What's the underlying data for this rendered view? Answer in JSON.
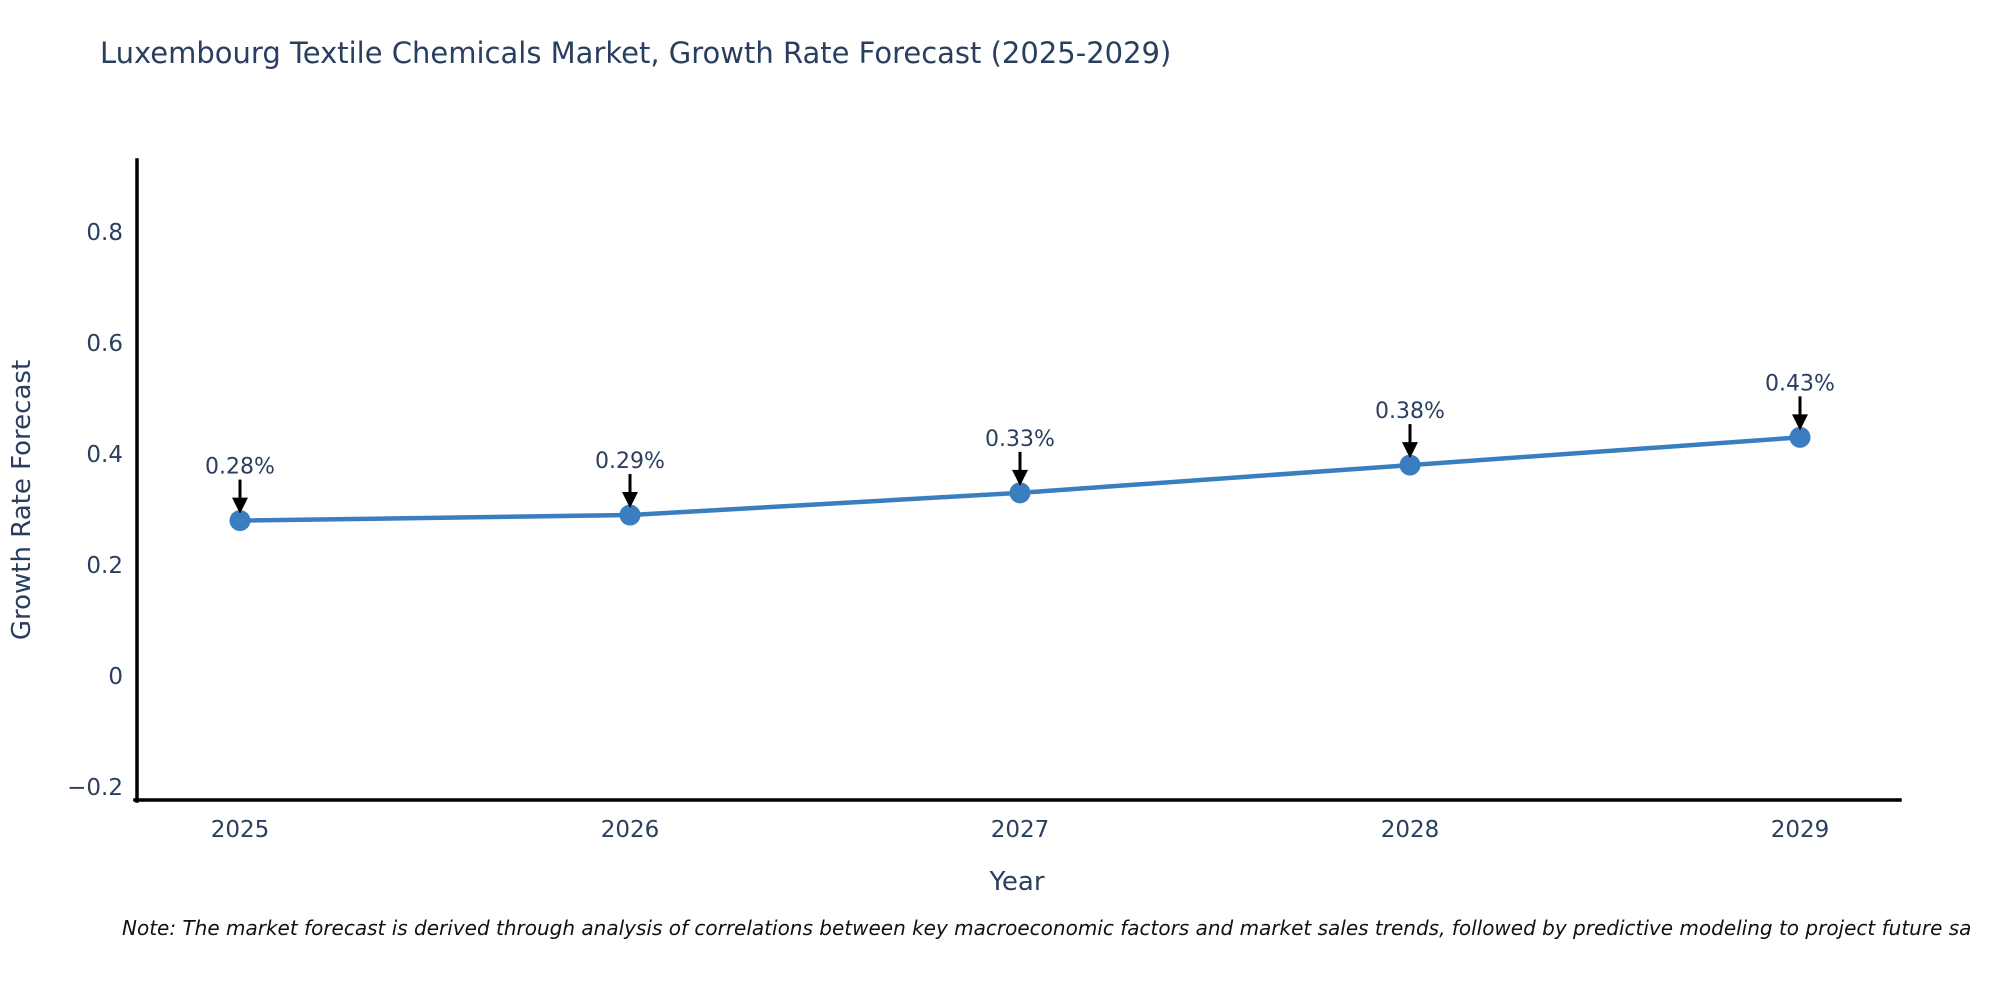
{
  "title": "Luxembourg Textile Chemicals Market, Growth Rate Forecast (2025-2029)",
  "note": "Note: The market forecast is derived through analysis of correlations between key macroeconomic factors and market sales trends, followed by predictive modeling to project future sa",
  "colors": {
    "line": "#3a7ebf",
    "marker": "#3a7ebf",
    "text": "#2a3f5f",
    "axis": "#000000",
    "arrow": "#000000",
    "background": "#ffffff"
  },
  "chart_data": {
    "type": "line",
    "title": "Luxembourg Textile Chemicals Market, Growth Rate Forecast (2025-2029)",
    "xlabel": "Year",
    "ylabel": "Growth Rate Forecast",
    "x": [
      2025,
      2026,
      2027,
      2028,
      2029
    ],
    "values": [
      0.28,
      0.29,
      0.33,
      0.38,
      0.43
    ],
    "point_labels": [
      "0.28%",
      "0.29%",
      "0.33%",
      "0.38%",
      "0.43%"
    ],
    "xticks": [
      "2025",
      "2026",
      "2027",
      "2028",
      "2029"
    ],
    "yticks": {
      "values": [
        -0.2,
        0,
        0.2,
        0.4,
        0.6,
        0.8
      ],
      "labels": [
        "−0.2",
        "0",
        "0.2",
        "0.4",
        "0.6",
        "0.8"
      ]
    },
    "ylim": [
      -0.25,
      0.93
    ],
    "grid": false,
    "legend": false,
    "annotation_arrows": true
  }
}
